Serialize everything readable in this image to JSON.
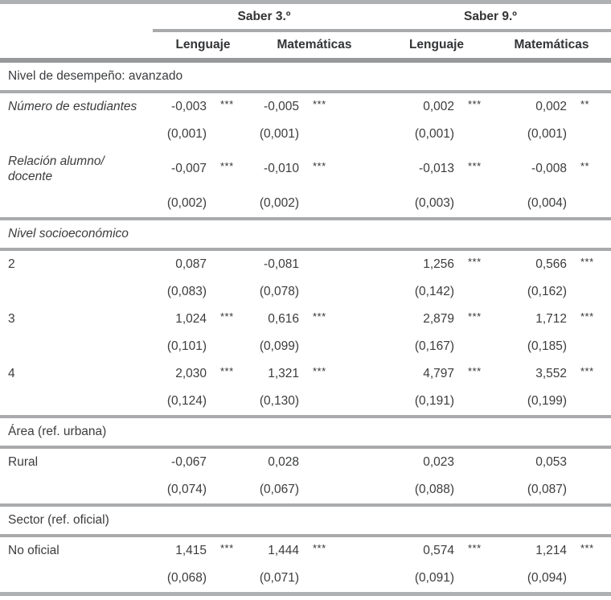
{
  "table": {
    "group_headers": [
      "Saber 3.º",
      "Saber 9.º"
    ],
    "column_headers": [
      "Lenguaje",
      "Matemáticas",
      "Lenguaje",
      "Matemáticas"
    ],
    "sections": [
      {
        "title": "Nivel de desempeño: avanzado",
        "title_italic": false,
        "rows": [
          {
            "label": "Número de estudiantes",
            "label_italic": true,
            "cells": [
              {
                "coef": "-0,003",
                "stars": "***",
                "se": "(0,001)"
              },
              {
                "coef": "-0,005",
                "stars": "***",
                "se": "(0,001)"
              },
              {
                "coef": "0,002",
                "stars": "***",
                "se": "(0,001)"
              },
              {
                "coef": "0,002",
                "stars": "**",
                "se": "(0,001)"
              }
            ]
          },
          {
            "label": "Relación alumno/\ndocente",
            "label_italic": true,
            "cells": [
              {
                "coef": "-0,007",
                "stars": "***",
                "se": "(0,002)"
              },
              {
                "coef": "-0,010",
                "stars": "***",
                "se": "(0,002)"
              },
              {
                "coef": "-0,013",
                "stars": "***",
                "se": "(0,003)"
              },
              {
                "coef": "-0,008",
                "stars": "**",
                "se": "(0,004)"
              }
            ]
          }
        ]
      },
      {
        "title": "Nivel socioeconómico",
        "title_italic": true,
        "rows": [
          {
            "label": "2",
            "label_italic": false,
            "cells": [
              {
                "coef": "0,087",
                "stars": "",
                "se": "(0,083)"
              },
              {
                "coef": "-0,081",
                "stars": "",
                "se": "(0,078)"
              },
              {
                "coef": "1,256",
                "stars": "***",
                "se": "(0,142)"
              },
              {
                "coef": "0,566",
                "stars": "***",
                "se": "(0,162)"
              }
            ]
          },
          {
            "label": "3",
            "label_italic": false,
            "cells": [
              {
                "coef": "1,024",
                "stars": "***",
                "se": "(0,101)"
              },
              {
                "coef": "0,616",
                "stars": "***",
                "se": "(0,099)"
              },
              {
                "coef": "2,879",
                "stars": "***",
                "se": "(0,167)"
              },
              {
                "coef": "1,712",
                "stars": "***",
                "se": "(0,185)"
              }
            ]
          },
          {
            "label": "4",
            "label_italic": false,
            "cells": [
              {
                "coef": "2,030",
                "stars": "***",
                "se": "(0,124)"
              },
              {
                "coef": "1,321",
                "stars": "***",
                "se": "(0,130)"
              },
              {
                "coef": "4,797",
                "stars": "***",
                "se": "(0,191)"
              },
              {
                "coef": "3,552",
                "stars": "***",
                "se": "(0,199)"
              }
            ]
          }
        ]
      },
      {
        "title": "Área (ref. urbana)",
        "title_italic": false,
        "rows": [
          {
            "label": "Rural",
            "label_italic": false,
            "cells": [
              {
                "coef": "-0,067",
                "stars": "",
                "se": "(0,074)"
              },
              {
                "coef": "0,028",
                "stars": "",
                "se": "(0,067)"
              },
              {
                "coef": "0,023",
                "stars": "",
                "se": "(0,088)"
              },
              {
                "coef": "0,053",
                "stars": "",
                "se": "(0,087)"
              }
            ]
          }
        ]
      },
      {
        "title": "Sector (ref. oficial)",
        "title_italic": false,
        "rows": [
          {
            "label": "No oficial",
            "label_italic": false,
            "cells": [
              {
                "coef": "1,415",
                "stars": "***",
                "se": "(0,068)"
              },
              {
                "coef": "1,444",
                "stars": "***",
                "se": "(0,071)"
              },
              {
                "coef": "0,574",
                "stars": "***",
                "se": "(0,091)"
              },
              {
                "coef": "1,214",
                "stars": "***",
                "se": "(0,094)"
              }
            ]
          }
        ]
      }
    ]
  }
}
